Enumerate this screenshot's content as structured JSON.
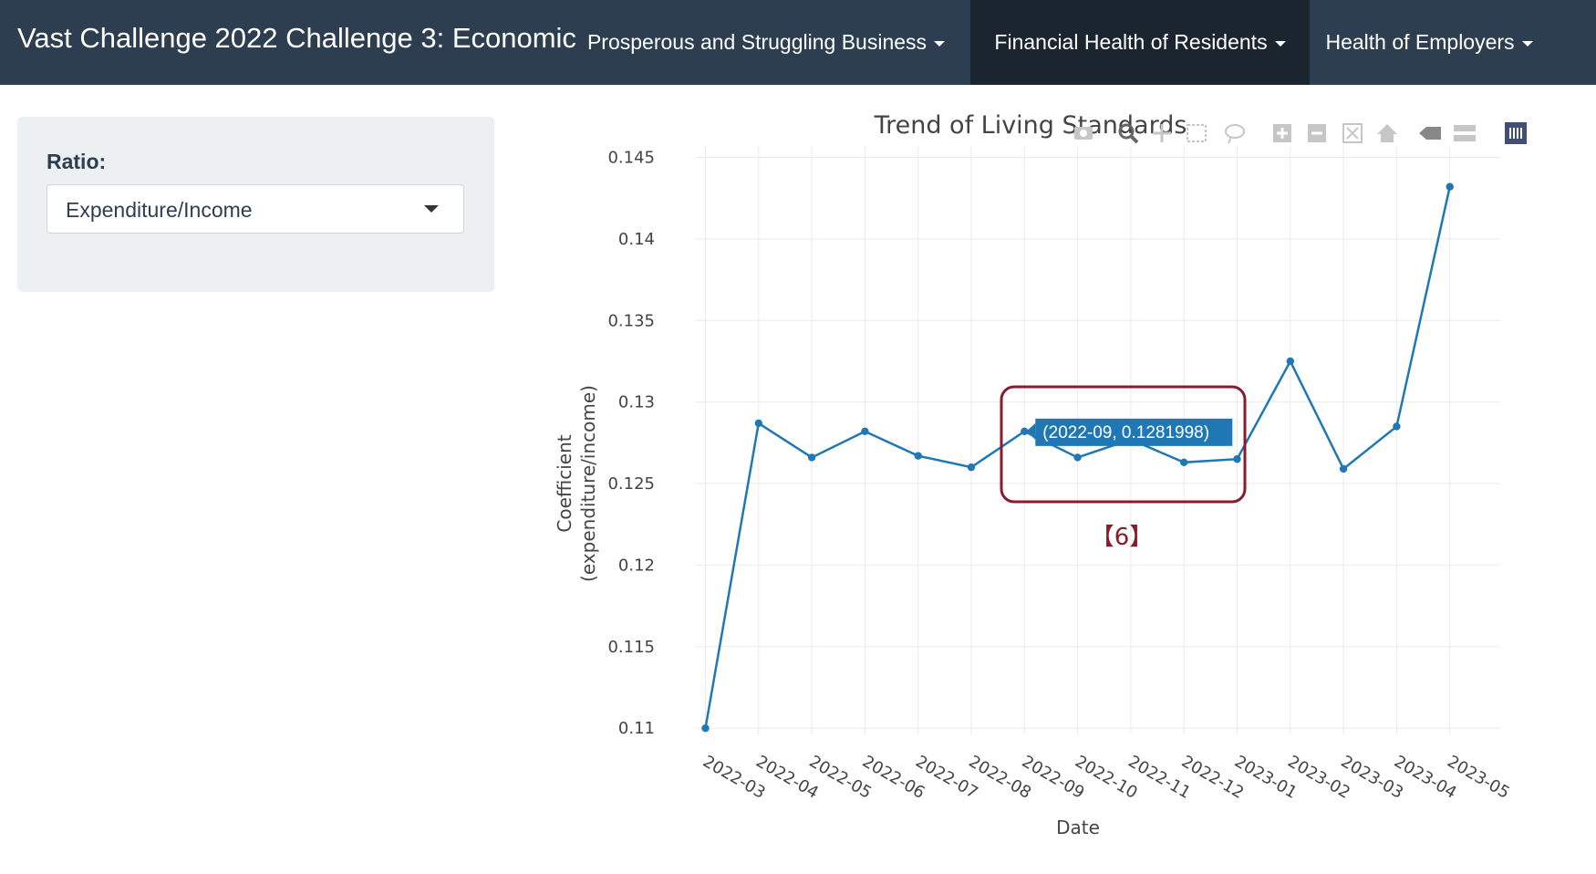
{
  "navbar": {
    "title": "Vast Challenge 2022 Challenge 3: Economic",
    "items": [
      {
        "label": "Prosperous and Struggling Business",
        "active": false
      },
      {
        "label": "Financial Health of Residents",
        "active": true
      },
      {
        "label": "Health of Employers",
        "active": false
      }
    ]
  },
  "sidebar": {
    "ratio_label": "Ratio:",
    "ratio_selected": "Expenditure/Income"
  },
  "annotation": {
    "marker_label": "【6】",
    "box_color": "#8b1a2b"
  },
  "tooltip": {
    "text": "(2022-09, 0.1281998)"
  },
  "modebar": {
    "icons": [
      "camera-icon",
      "zoom-icon",
      "pan-icon",
      "box-select-icon",
      "lasso-select-icon",
      "zoom-in-icon",
      "zoom-out-icon",
      "autoscale-icon",
      "reset-axes-icon",
      "spike-lines-icon",
      "compare-hover-icon",
      "plotly-logo-icon"
    ]
  },
  "chart_data": {
    "type": "line",
    "title": "Trend of Living Standards",
    "xlabel": "Date",
    "ylabel": "Coefficient\n(expenditure/income)",
    "categories": [
      "2022-03",
      "2022-04",
      "2022-05",
      "2022-06",
      "2022-07",
      "2022-08",
      "2022-09",
      "2022-10",
      "2022-11",
      "2022-12",
      "2023-01",
      "2023-02",
      "2023-03",
      "2023-04",
      "2023-05"
    ],
    "values": [
      0.11,
      0.1287,
      0.1266,
      0.1282,
      0.1267,
      0.126,
      0.1281998,
      0.1266,
      0.1277,
      0.1263,
      0.1265,
      0.1325,
      0.1259,
      0.1285,
      0.1432
    ],
    "ylim": [
      0.1085,
      0.1457
    ],
    "yticks": [
      0.11,
      0.115,
      0.12,
      0.125,
      0.13,
      0.135,
      0.14,
      0.145
    ],
    "ytick_labels": [
      "0.11",
      "0.115",
      "0.12",
      "0.125",
      "0.13",
      "0.135",
      "0.14",
      "0.145"
    ],
    "grid": true,
    "line_color": "#1f77b4"
  }
}
